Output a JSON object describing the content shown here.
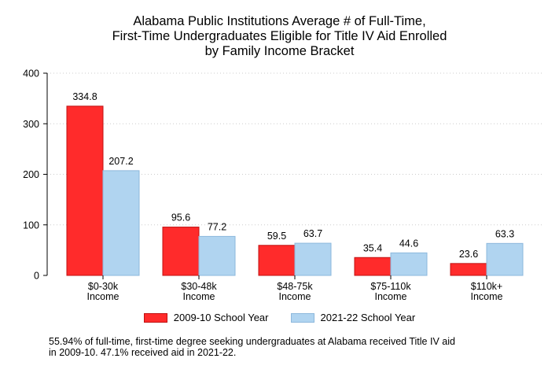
{
  "title_lines": [
    "Alabama Public Institutions Average # of Full-Time,",
    "First-Time Undergraduates Eligible for Title IV Aid Enrolled",
    "by Family Income Bracket"
  ],
  "legend": {
    "series1_label": "2009-10 School Year",
    "series2_label": "2021-22 School Year"
  },
  "footnote_lines": [
    "55.94% of full-time, first-time degree seeking undergraduates at Alabama received Title IV aid",
    "in 2009-10. 47.1% received aid in 2021-22."
  ],
  "colors": {
    "series1_fill": "#ff2b2b",
    "series1_stroke": "#c01010",
    "series2_fill": "#b0d4f0",
    "series2_stroke": "#8db8dc",
    "grid": "#cccccc"
  },
  "chart_data": {
    "type": "bar",
    "title": "Alabama Public Institutions Average # of Full-Time, First-Time Undergraduates Eligible for Title IV Aid Enrolled by Family Income Bracket",
    "categories": [
      [
        "$0-30k",
        "Income"
      ],
      [
        "$30-48k",
        "Income"
      ],
      [
        "$48-75k",
        "Income"
      ],
      [
        "$75-110k",
        "Income"
      ],
      [
        "$110k+",
        "Income"
      ]
    ],
    "series": [
      {
        "name": "2009-10 School Year",
        "values": [
          334.8,
          95.6,
          59.5,
          35.4,
          23.6
        ],
        "labels": [
          "334.8",
          "95.6",
          "59.5",
          "35.4",
          "23.6"
        ]
      },
      {
        "name": "2021-22 School Year",
        "values": [
          207.2,
          77.2,
          63.7,
          44.6,
          63.3
        ],
        "labels": [
          "207.2",
          "77.2",
          "63.7",
          "44.6",
          "63.3"
        ]
      }
    ],
    "ylim": [
      0,
      400
    ],
    "yticks": [
      0,
      100,
      200,
      300,
      400
    ],
    "xlabel": "",
    "ylabel": "",
    "grid": "horizontal dotted",
    "legend_position": "bottom"
  }
}
